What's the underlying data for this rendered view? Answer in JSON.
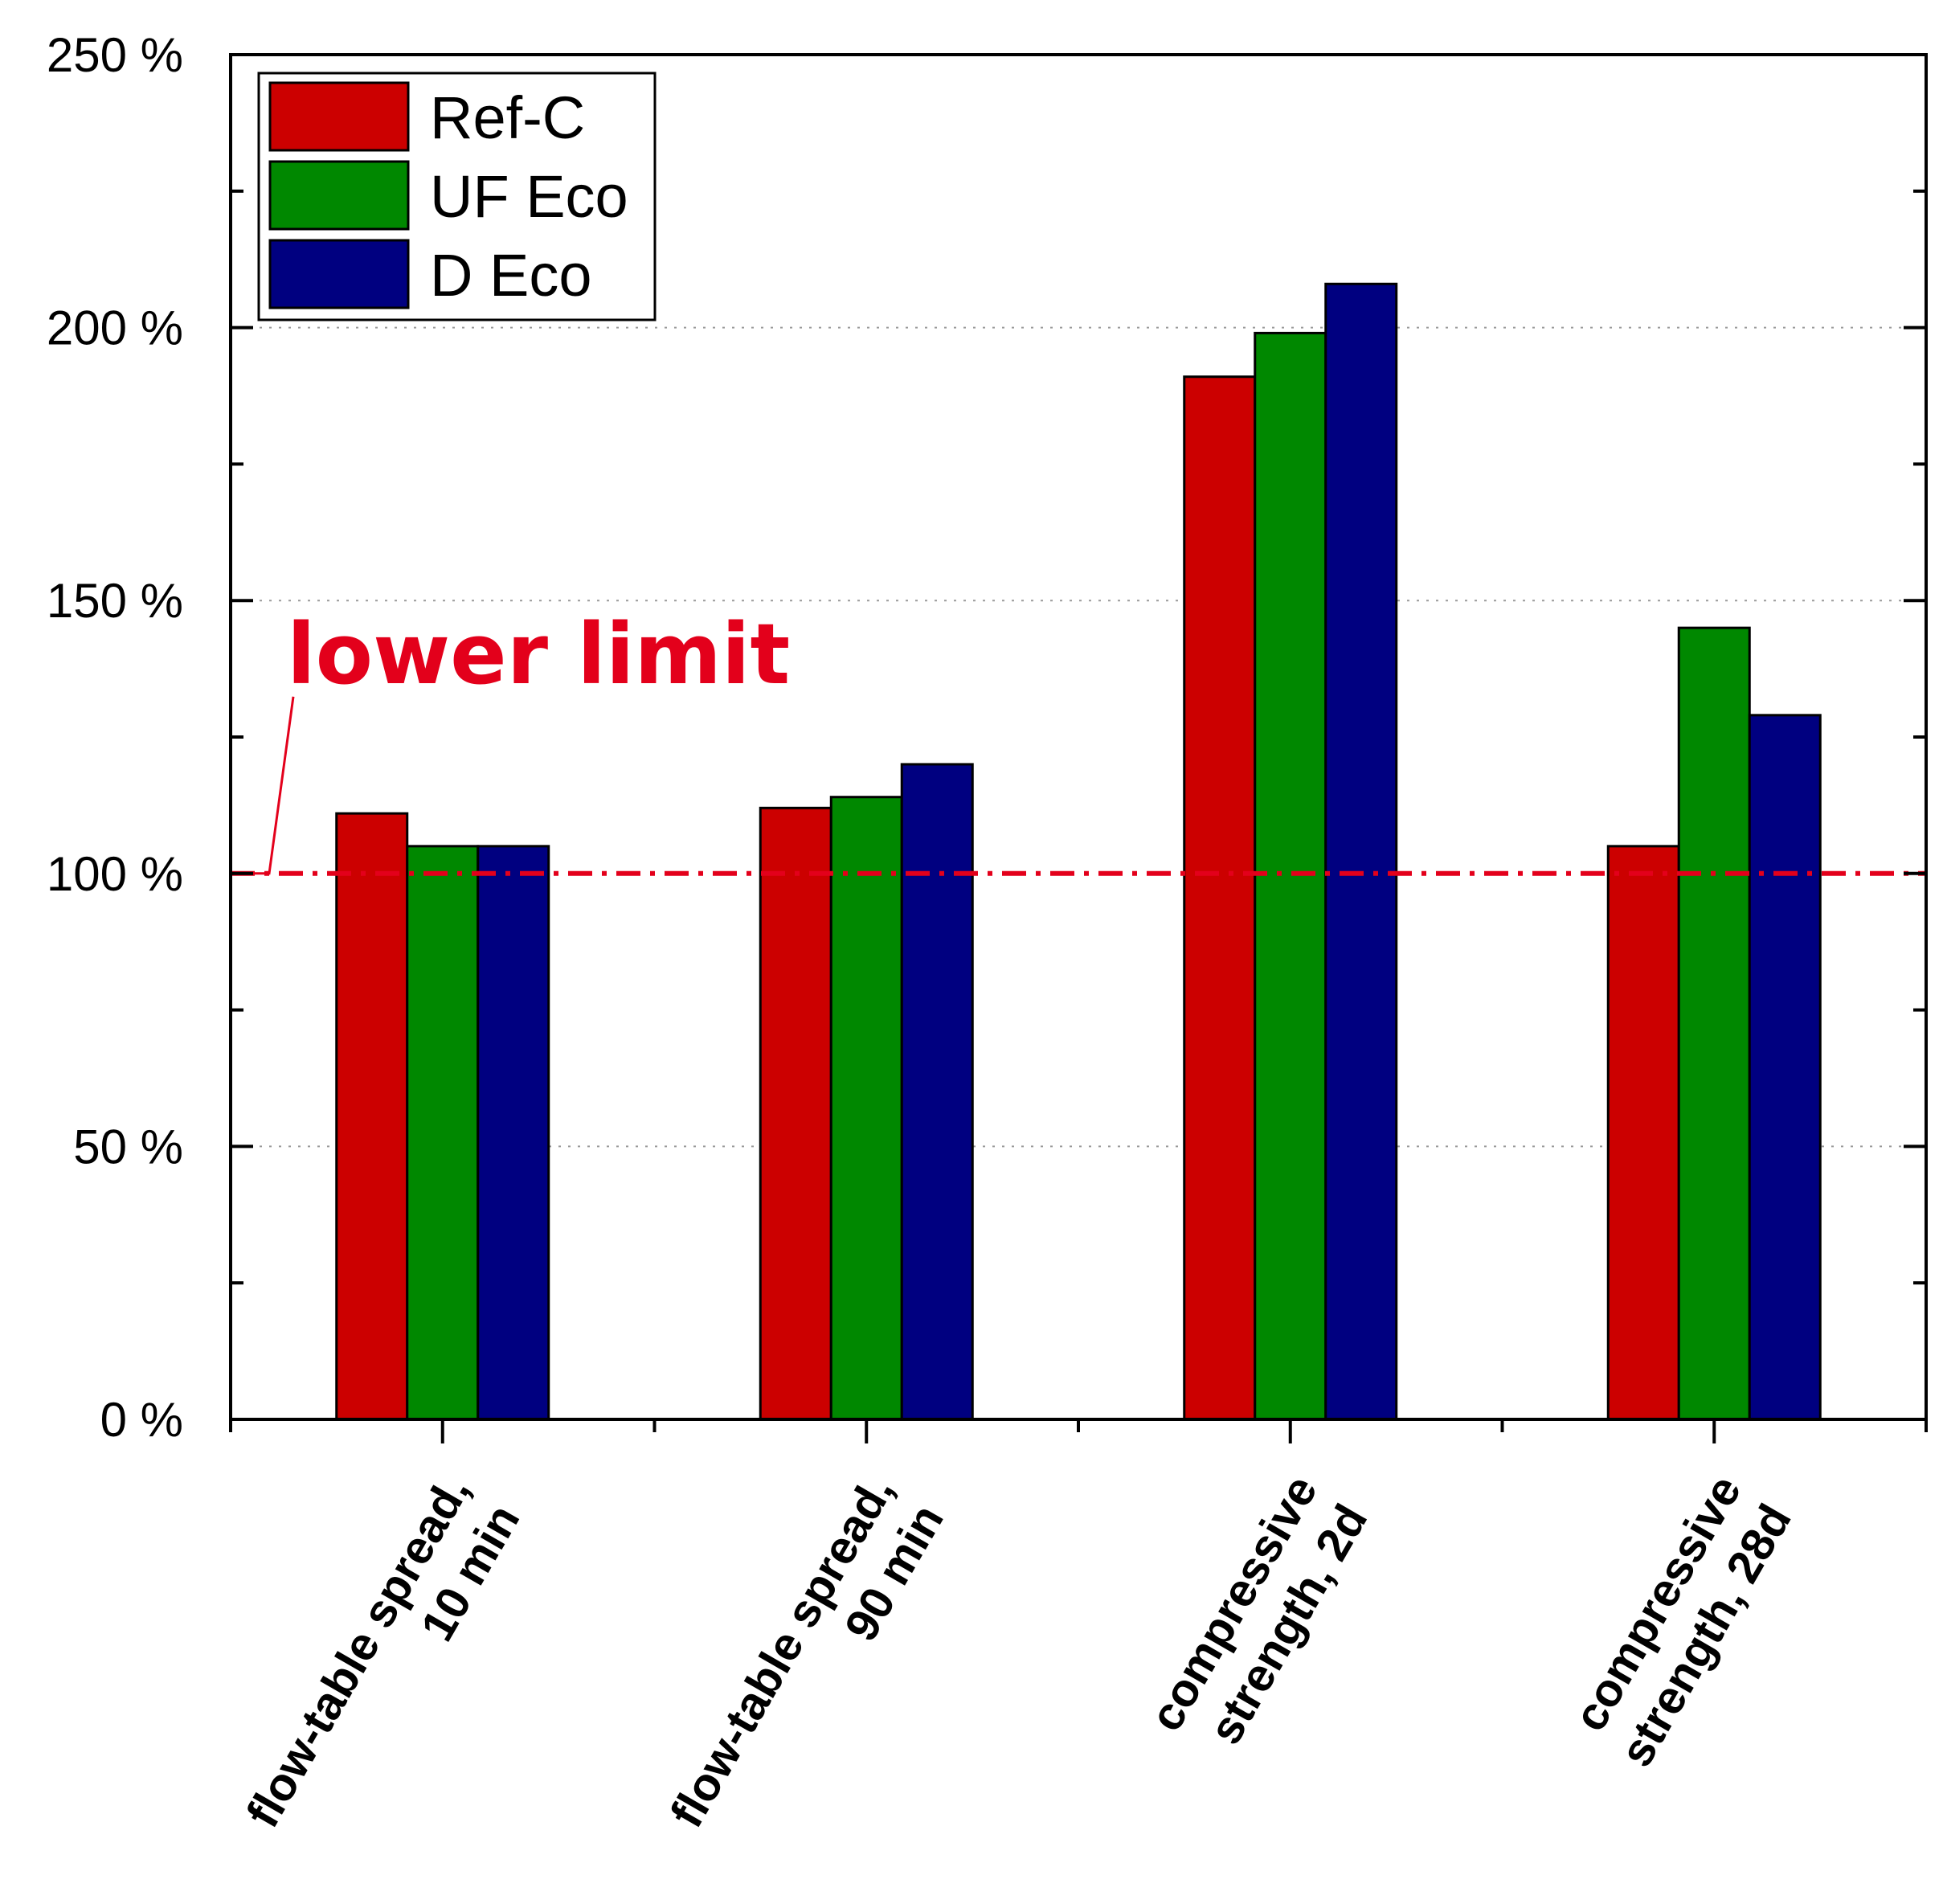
{
  "chart_data": {
    "type": "bar",
    "title": "",
    "xlabel": "",
    "ylabel": "",
    "ylim": [
      0,
      250
    ],
    "yticks": [
      0,
      50,
      100,
      150,
      200,
      250
    ],
    "ytick_labels": [
      "0 %",
      "50 %",
      "100 %",
      "150 %",
      "200 %",
      "250 %"
    ],
    "grid": "horizontal dotted at 50, 150, 200",
    "legend_position": "top-left",
    "categories": [
      [
        "flow-table spread,",
        "10 min"
      ],
      [
        "flow-table spread,",
        "90 min"
      ],
      [
        "compressive",
        "strength, 2d"
      ],
      [
        "compressive",
        "strength, 28d"
      ]
    ],
    "series": [
      {
        "name": "Ref-C",
        "color": "#cc0000",
        "values": [
          111,
          112,
          191,
          105
        ]
      },
      {
        "name": "UF Eco",
        "color": "#008800",
        "values": [
          105,
          114,
          199,
          145
        ]
      },
      {
        "name": "D Eco",
        "color": "#000080",
        "values": [
          105,
          120,
          208,
          129
        ]
      }
    ],
    "reference_line": {
      "value": 100,
      "label": "lower limit",
      "color": "#e3001b"
    }
  }
}
